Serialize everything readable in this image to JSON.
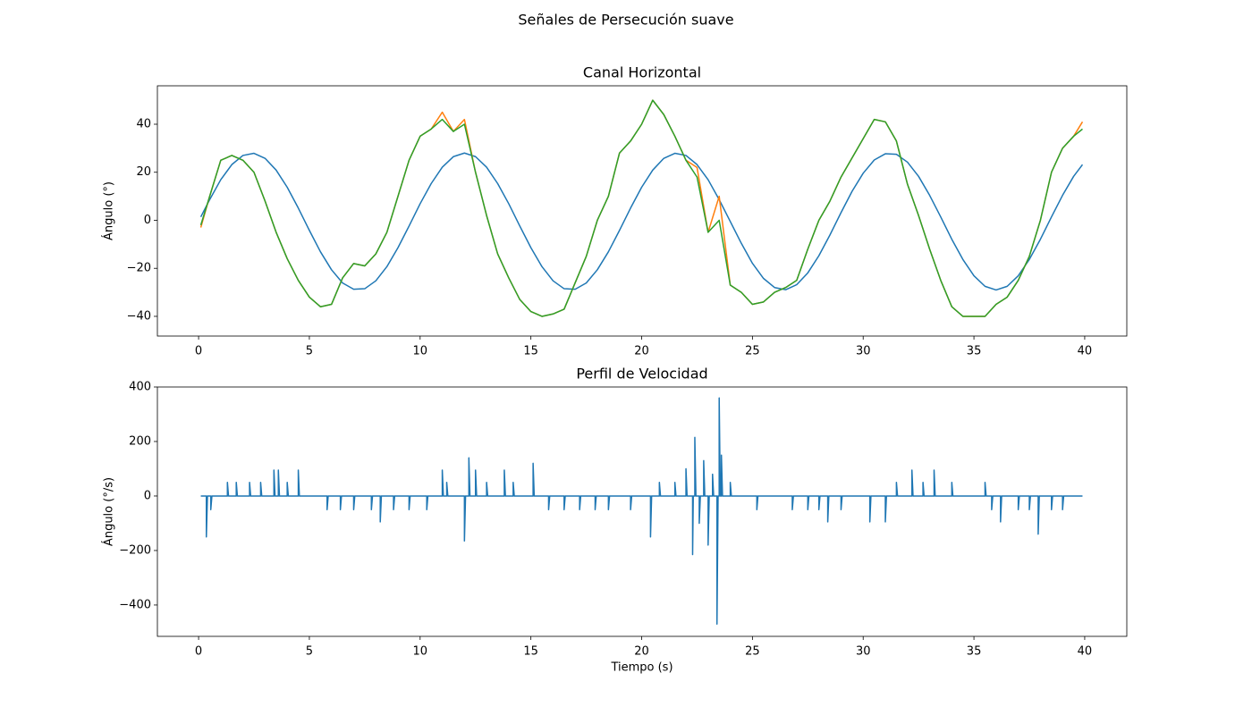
{
  "title": "Señales de Persecución suave",
  "chart_data": [
    {
      "type": "line",
      "title": "Canal Horizontal",
      "ylabel": "Ángulo (°)",
      "x": [
        0.1,
        0.5,
        1.0,
        1.5,
        2.0,
        2.5,
        3.0,
        3.5,
        4.0,
        4.5,
        5.0,
        5.5,
        6.0,
        6.5,
        7.0,
        7.5,
        8.0,
        8.5,
        9.0,
        9.5,
        10.0,
        10.5,
        11.0,
        11.5,
        12.0,
        12.5,
        13.0,
        13.5,
        14.0,
        14.5,
        15.0,
        15.5,
        16.0,
        16.5,
        17.0,
        17.5,
        18.0,
        18.5,
        19.0,
        19.5,
        20.0,
        20.5,
        21.0,
        21.5,
        22.0,
        22.5,
        23.0,
        23.5,
        24.0,
        24.5,
        25.0,
        25.5,
        26.0,
        26.5,
        27.0,
        27.5,
        28.0,
        28.5,
        29.0,
        29.5,
        30.0,
        30.5,
        31.0,
        31.5,
        32.0,
        32.5,
        33.0,
        33.5,
        34.0,
        34.5,
        35.0,
        35.5,
        36.0,
        36.5,
        37.0,
        37.5,
        38.0,
        38.5,
        39.0,
        39.5,
        39.9
      ],
      "series": [
        {
          "color": "#1f77b4",
          "values": [
            1.4,
            8.6,
            16.9,
            23.2,
            27.0,
            27.9,
            25.8,
            20.9,
            13.75,
            5.1,
            -4.2,
            -13.1,
            -20.6,
            -26.1,
            -28.7,
            -28.5,
            -25.2,
            -19.3,
            -11.4,
            -2.4,
            6.9,
            15.3,
            22.1,
            26.5,
            28,
            26.5,
            22.1,
            15.3,
            6.9,
            -2.4,
            -11.4,
            -19.3,
            -25.2,
            -28.5,
            -28.7,
            -26.1,
            -20.6,
            -13.1,
            -4.2,
            5.1,
            13.75,
            20.9,
            25.8,
            27.9,
            27.0,
            23.2,
            16.9,
            8.6,
            -0.5,
            -9.6,
            -17.9,
            -24.2,
            -28.0,
            -28.9,
            -26.8,
            -21.9,
            -14.75,
            -6.1,
            3.2,
            12.1,
            19.6,
            25.1,
            27.7,
            27.5,
            24.2,
            18.3,
            10.4,
            1.4,
            -7.9,
            -16.3,
            -23.1,
            -27.5,
            -29,
            -27.5,
            -23.1,
            -16.3,
            -7.9,
            1.4,
            10.4,
            18.3,
            23.2
          ]
        },
        {
          "color": "#ff7f0e",
          "values": [
            -3,
            10,
            25,
            27,
            25,
            20,
            8,
            -5,
            -16,
            -25,
            -32,
            -36,
            -35,
            -24,
            -18,
            -19,
            -14,
            -5,
            10,
            25,
            35,
            38,
            45,
            37,
            42,
            20,
            2,
            -14,
            -24,
            -33,
            -38,
            -40,
            -39,
            -37,
            -26,
            -15,
            0,
            10,
            28,
            33,
            40,
            50,
            44,
            35,
            25,
            22,
            -5,
            10,
            -27,
            -30,
            -35,
            -34,
            -30,
            -28,
            -25,
            -12,
            0,
            8,
            18,
            26,
            34,
            42,
            41,
            33,
            15,
            2,
            -12,
            -25,
            -36,
            -40,
            -40,
            -40,
            -35,
            -32,
            -25,
            -15,
            0,
            20,
            30,
            35,
            41
          ]
        },
        {
          "color": "#2ca02c",
          "values": [
            -2,
            10,
            25,
            27,
            25,
            20,
            8,
            -5,
            -16,
            -25,
            -32,
            -36,
            -35,
            -24,
            -18,
            -19,
            -14,
            -5,
            10,
            25,
            35,
            38,
            42,
            37,
            40,
            20,
            2,
            -14,
            -24,
            -33,
            -38,
            -40,
            -39,
            -37,
            -26,
            -15,
            0,
            10,
            28,
            33,
            40,
            50,
            44,
            35,
            25,
            18,
            -5,
            0,
            -27,
            -30,
            -35,
            -34,
            -30,
            -28,
            -25,
            -12,
            0,
            8,
            18,
            26,
            34,
            42,
            41,
            33,
            15,
            2,
            -12,
            -25,
            -36,
            -40,
            -40,
            -40,
            -35,
            -32,
            -25,
            -15,
            0,
            20,
            30,
            35,
            38
          ]
        }
      ],
      "xlim": [
        -1.86,
        41.9
      ],
      "ylim": [
        -48.2,
        56
      ],
      "xticks": [
        0,
        5,
        10,
        15,
        20,
        25,
        30,
        35,
        40
      ],
      "yticks": [
        {
          "value": -40,
          "label": "−40"
        },
        {
          "value": -20,
          "label": "−20"
        },
        0,
        20,
        40
      ]
    },
    {
      "type": "line",
      "title": "Perfil de Velocidad",
      "xlabel": "Tiempo (s)",
      "ylabel": "Ángulo (°/s)",
      "x": [
        0.1,
        0.35,
        0.35,
        0.4,
        0.55,
        0.55,
        0.6,
        1.3,
        1.3,
        1.35,
        1.7,
        1.7,
        1.75,
        2.3,
        2.3,
        2.35,
        2.8,
        2.8,
        2.85,
        3.4,
        3.4,
        3.45,
        3.6,
        3.6,
        3.65,
        4.0,
        4.0,
        4.05,
        4.5,
        4.5,
        4.55,
        5.8,
        5.8,
        5.85,
        6.4,
        6.4,
        6.45,
        7.0,
        7.0,
        7.05,
        7.8,
        7.8,
        7.85,
        8.2,
        8.2,
        8.25,
        8.8,
        8.8,
        8.85,
        9.5,
        9.5,
        9.55,
        10.3,
        10.3,
        10.35,
        11.0,
        11.0,
        11.05,
        11.2,
        11.2,
        11.25,
        12.0,
        12.0,
        12.05,
        12.2,
        12.2,
        12.25,
        12.5,
        12.5,
        12.55,
        13.0,
        13.0,
        13.05,
        13.8,
        13.8,
        13.85,
        14.2,
        14.2,
        14.25,
        15.1,
        15.1,
        15.15,
        15.8,
        15.8,
        15.85,
        16.5,
        16.5,
        16.55,
        17.2,
        17.2,
        17.25,
        17.9,
        17.9,
        17.95,
        18.5,
        18.5,
        18.55,
        19.5,
        19.5,
        19.55,
        20.4,
        20.4,
        20.45,
        20.8,
        20.8,
        20.85,
        21.5,
        21.5,
        21.55,
        22.0,
        22.0,
        22.05,
        22.3,
        22.3,
        22.33,
        22.4,
        22.4,
        22.45,
        22.6,
        22.6,
        22.65,
        22.8,
        22.8,
        22.85,
        23.0,
        23.0,
        23.05,
        23.2,
        23.2,
        23.25,
        23.4,
        23.4,
        23.45,
        23.5,
        23.5,
        23.55,
        23.6,
        23.6,
        23.65,
        24.0,
        24.0,
        24.05,
        25.2,
        25.2,
        25.25,
        26.8,
        26.8,
        26.85,
        27.5,
        27.5,
        27.55,
        28.0,
        28.0,
        28.05,
        28.4,
        28.4,
        28.45,
        29.0,
        29.0,
        29.05,
        30.3,
        30.3,
        30.35,
        31.0,
        31.0,
        31.05,
        31.5,
        31.5,
        31.55,
        32.2,
        32.2,
        32.25,
        32.7,
        32.7,
        32.75,
        33.2,
        33.2,
        33.25,
        34.0,
        34.0,
        34.05,
        35.5,
        35.5,
        35.55,
        35.8,
        35.8,
        35.85,
        36.2,
        36.2,
        36.25,
        37.0,
        37.0,
        37.05,
        37.5,
        37.5,
        37.55,
        37.9,
        37.9,
        37.95,
        38.5,
        38.5,
        38.55,
        39.0,
        39.0,
        39.05,
        39.9
      ],
      "series": [
        {
          "color": "#1f77b4",
          "values": [
            0,
            0,
            -150,
            0,
            0,
            -50,
            0,
            0,
            50,
            0,
            0,
            50,
            0,
            0,
            50,
            0,
            0,
            50,
            0,
            0,
            95,
            0,
            0,
            95,
            0,
            0,
            50,
            0,
            0,
            95,
            0,
            0,
            -50,
            0,
            0,
            -50,
            0,
            0,
            -50,
            0,
            0,
            -50,
            0,
            0,
            -95,
            0,
            0,
            -50,
            0,
            0,
            -50,
            0,
            0,
            -50,
            0,
            0,
            95,
            0,
            0,
            50,
            0,
            0,
            -165,
            0,
            0,
            140,
            0,
            0,
            95,
            0,
            0,
            50,
            0,
            0,
            95,
            0,
            0,
            50,
            0,
            0,
            120,
            0,
            0,
            -50,
            0,
            0,
            -50,
            0,
            0,
            -50,
            0,
            0,
            -50,
            0,
            0,
            -50,
            0,
            0,
            -50,
            0,
            0,
            -150,
            0,
            0,
            50,
            0,
            0,
            50,
            0,
            0,
            100,
            0,
            0,
            -215,
            0,
            0,
            215,
            0,
            0,
            -100,
            0,
            0,
            130,
            0,
            0,
            -180,
            0,
            0,
            80,
            0,
            0,
            -470,
            0,
            0,
            360,
            0,
            0,
            150,
            0,
            0,
            50,
            0,
            0,
            -50,
            0,
            0,
            -50,
            0,
            0,
            -50,
            0,
            0,
            -50,
            0,
            0,
            -95,
            0,
            0,
            -50,
            0,
            0,
            -95,
            0,
            0,
            -95,
            0,
            0,
            50,
            0,
            0,
            95,
            0,
            0,
            50,
            0,
            0,
            95,
            0,
            0,
            50,
            0,
            0,
            50,
            0,
            0,
            -50,
            0,
            0,
            -95,
            0,
            0,
            -50,
            0,
            0,
            -50,
            0,
            0,
            -140,
            0,
            0,
            -50,
            0,
            0,
            -50,
            0,
            0
          ]
        }
      ],
      "xlim": [
        -1.86,
        41.9
      ],
      "ylim": [
        -515,
        400
      ],
      "xticks": [
        0,
        5,
        10,
        15,
        20,
        25,
        30,
        35,
        40
      ],
      "yticks": [
        {
          "value": -400,
          "label": "−400"
        },
        {
          "value": -200,
          "label": "−200"
        },
        0,
        200,
        400
      ]
    }
  ]
}
